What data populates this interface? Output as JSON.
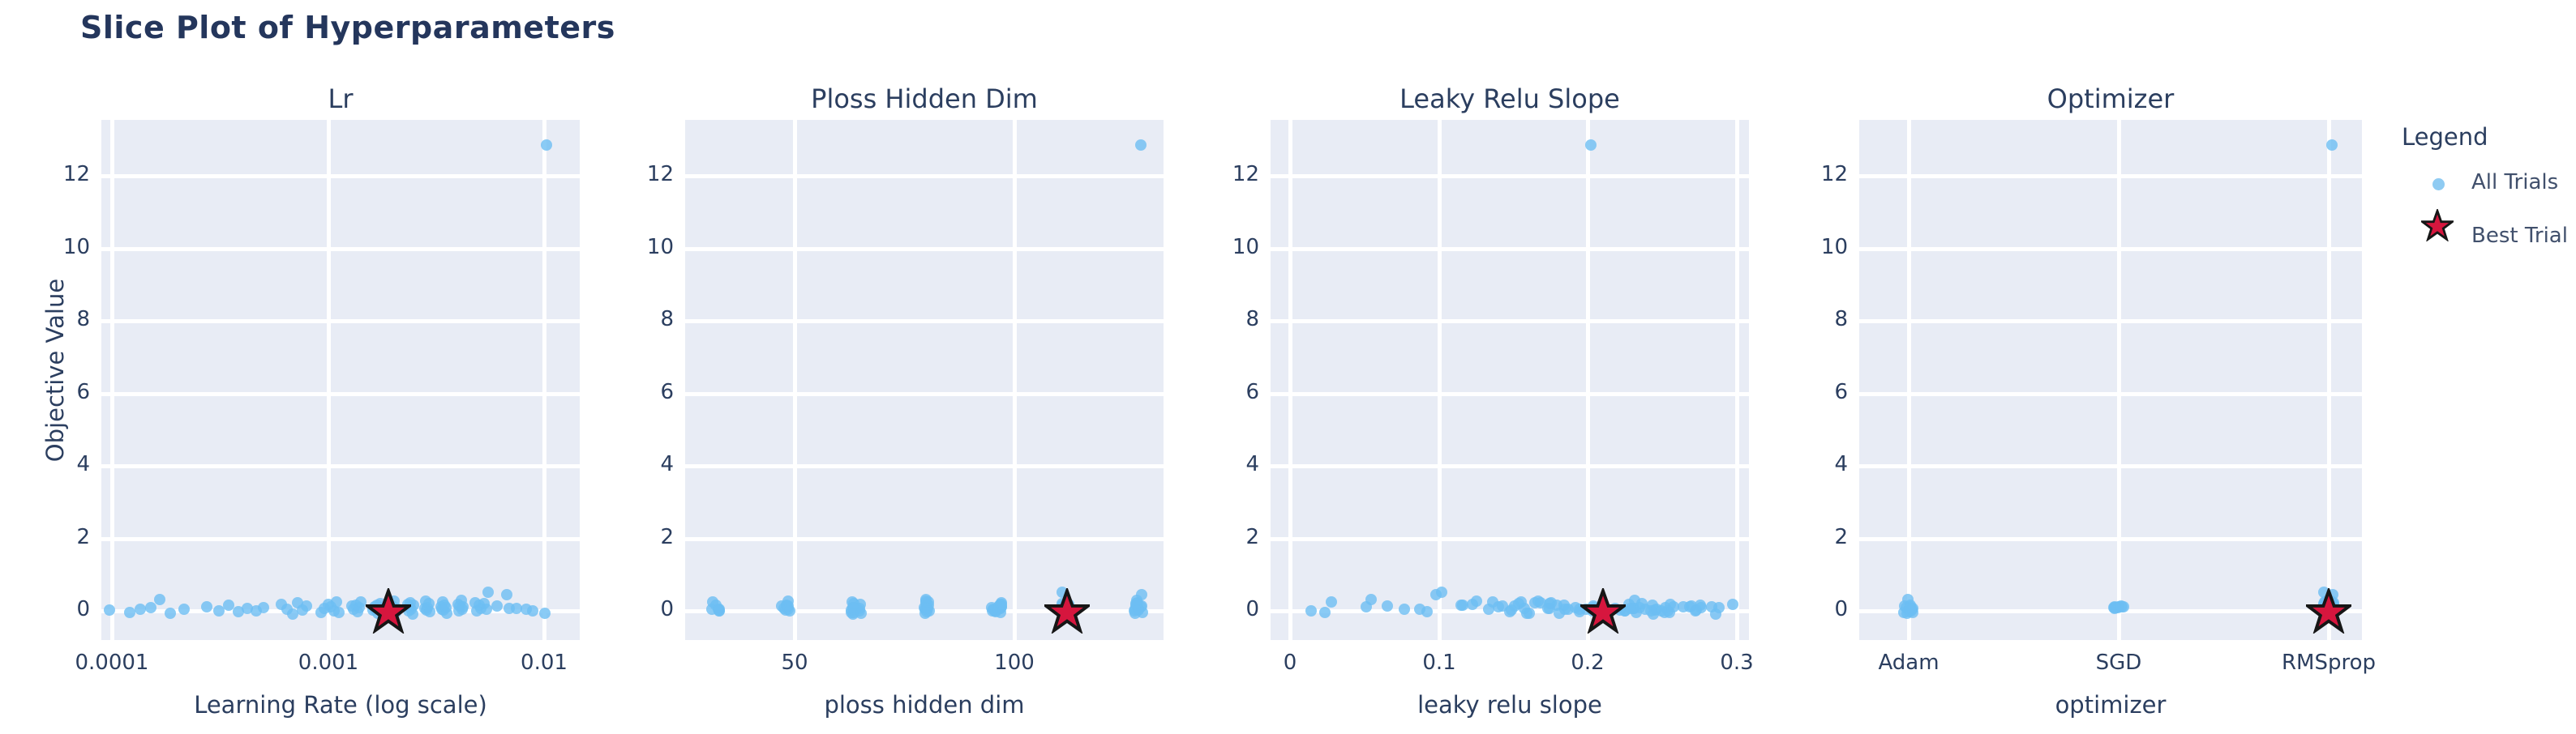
{
  "page": {
    "title": "Slice Plot of Hyperparameters"
  },
  "colors": {
    "background": "#ffffff",
    "plot_background": "#e8ecf5",
    "gridline": "#ffffff",
    "text": "#2b3e5f",
    "title_text": "#24365c",
    "trial_dot": "rgba(109,190,242,0.8)",
    "best_star_fill": "#d6163e",
    "best_star_stroke": "#161616"
  },
  "chart_data": {
    "type": "scatter",
    "title": "Slice Plot of Hyperparameters",
    "ylabel": "Objective Value",
    "ylim": [
      -0.8,
      13.55
    ],
    "yticks": [
      0,
      2,
      4,
      6,
      8,
      10,
      12
    ],
    "grid": true,
    "legend": {
      "title": "Legend",
      "position": "right",
      "items": [
        {
          "label": "All Trials",
          "marker": "dot",
          "color": "#8fcbf2"
        },
        {
          "label": "Best Trial",
          "marker": "star",
          "color": "#d6163e"
        }
      ]
    },
    "subplots": [
      {
        "title": "Lr",
        "xlabel": "Learning Rate (log scale)",
        "param": "lr",
        "xscale": "log",
        "xlim": [
          8.9e-05,
          0.0146
        ],
        "xticks": [
          0.0001,
          0.001,
          0.01
        ],
        "xtick_labels": [
          "0.0001",
          "0.001",
          "0.01"
        ]
      },
      {
        "title": "Ploss Hidden Dim",
        "xlabel": "ploss hidden dim",
        "param": "hidden",
        "xscale": "linear",
        "xlim": [
          25,
          134
        ],
        "xticks": [
          50,
          100
        ],
        "xtick_labels": [
          "50",
          "100"
        ]
      },
      {
        "title": "Leaky Relu Slope",
        "xlabel": "leaky relu slope",
        "param": "slope",
        "xscale": "linear",
        "xlim": [
          -0.013,
          0.308
        ],
        "xticks": [
          0,
          0.1,
          0.2,
          0.3
        ],
        "xtick_labels": [
          "0",
          "0.1",
          "0.2",
          "0.3"
        ]
      },
      {
        "title": "Optimizer",
        "xlabel": "optimizer",
        "param": "optimizer",
        "xscale": "categorical",
        "categories": [
          "Adam",
          "SGD",
          "RMSprop"
        ],
        "cat_pos": [
          0.098,
          0.516,
          0.934
        ]
      }
    ],
    "hidden_dim_choices": [
      32,
      48,
      64,
      80,
      96,
      112,
      128
    ],
    "best_trial": {
      "lr": 0.0019,
      "hidden": 112,
      "slope": 0.21,
      "optimizer": "RMSprop",
      "objective": 0.0
    },
    "trials": [
      [
        0.000102,
        64,
        0.152,
        "RMSprop",
        0.02
      ],
      [
        0.000115,
        96,
        0.021,
        "Adam",
        -0.04
      ],
      [
        0.000131,
        48,
        0.185,
        "RMSprop",
        0.06
      ],
      [
        0.00015,
        112,
        0.203,
        "RMSprop",
        0.1
      ],
      [
        0.000168,
        80,
        0.055,
        "Adam",
        0.31
      ],
      [
        0.00019,
        128,
        0.162,
        "RMSprop",
        -0.06
      ],
      [
        0.000225,
        32,
        0.241,
        "RMSprop",
        0.04
      ],
      [
        0.00026,
        96,
        0.048,
        "SGD",
        0.12
      ],
      [
        0.0003,
        64,
        0.27,
        "RMSprop",
        0.0
      ],
      [
        0.00034,
        112,
        0.178,
        "RMSprop",
        0.15
      ],
      [
        0.000385,
        80,
        0.092,
        "Adam",
        -0.02
      ],
      [
        0.00043,
        48,
        0.232,
        "RMSprop",
        0.07
      ],
      [
        0.00048,
        128,
        0.205,
        "RMSprop",
        0.01
      ],
      [
        0.00053,
        96,
        0.255,
        "SGD",
        0.09
      ],
      [
        0.00058,
        64,
        0.12,
        "RMSprop",
        0.18
      ],
      [
        0.00063,
        32,
        0.075,
        "Adam",
        0.05
      ],
      [
        0.00068,
        112,
        0.285,
        "RMSprop",
        -0.08
      ],
      [
        0.00073,
        80,
        0.165,
        "RMSprop",
        0.22
      ],
      [
        0.00078,
        96,
        0.215,
        "RMSprop",
        0.03
      ],
      [
        0.00083,
        48,
        0.068,
        "Adam",
        0.14
      ],
      [
        0.00088,
        128,
        0.248,
        "RMSprop",
        -0.03
      ],
      [
        0.00093,
        64,
        0.172,
        "RMSprop",
        0.08
      ],
      [
        0.00098,
        112,
        0.296,
        "RMSprop",
        0.19
      ],
      [
        0.00103,
        80,
        0.14,
        "SGD",
        0.11
      ],
      [
        0.00108,
        96,
        0.226,
        "RMSprop",
        0.0
      ],
      [
        0.00113,
        32,
        0.03,
        "RMSprop",
        0.26
      ],
      [
        0.00118,
        64,
        0.258,
        "Adam",
        -0.05
      ],
      [
        0.00123,
        128,
        0.148,
        "RMSprop",
        0.13
      ],
      [
        0.00128,
        112,
        0.21,
        "RMSprop",
        0.05
      ],
      [
        0.00133,
        48,
        0.275,
        "RMSprop",
        0.17
      ],
      [
        0.00138,
        96,
        0.195,
        "RMSprop",
        -0.01
      ],
      [
        0.00143,
        80,
        0.236,
        "Adam",
        0.09
      ],
      [
        0.00148,
        64,
        0.158,
        "RMSprop",
        0.24
      ],
      [
        0.00153,
        112,
        0.218,
        "RMSprop",
        0.02
      ],
      [
        0.00158,
        128,
        0.262,
        "SGD",
        0.12
      ],
      [
        0.00163,
        96,
        0.132,
        "RMSprop",
        0.06
      ],
      [
        0.00168,
        32,
        0.243,
        "RMSprop",
        0.16
      ],
      [
        0.00173,
        80,
        0.182,
        "Adam",
        -0.07
      ],
      [
        0.00178,
        64,
        0.29,
        "RMSprop",
        0.1
      ],
      [
        0.00183,
        112,
        0.157,
        "RMSprop",
        0.21
      ],
      [
        0.00188,
        48,
        0.222,
        "RMSprop",
        0.0
      ],
      [
        0.00193,
        96,
        0.268,
        "RMSprop",
        0.14
      ],
      [
        0.00198,
        128,
        0.198,
        "Adam",
        0.04
      ],
      [
        0.00204,
        80,
        0.126,
        "RMSprop",
        0.28
      ],
      [
        0.0021,
        64,
        0.234,
        "RMSprop",
        -0.04
      ],
      [
        0.00216,
        112,
        0.176,
        "SGD",
        0.08
      ],
      [
        0.00222,
        96,
        0.252,
        "RMSprop",
        0.18
      ],
      [
        0.00228,
        32,
        0.012,
        "RMSprop",
        0.01
      ],
      [
        0.00234,
        48,
        0.282,
        "Adam",
        0.11
      ],
      [
        0.0024,
        128,
        0.168,
        "RMSprop",
        0.23
      ],
      [
        0.00247,
        80,
        0.206,
        "RMSprop",
        0.05
      ],
      [
        0.00254,
        64,
        0.246,
        "RMSprop",
        -0.09
      ],
      [
        0.00261,
        112,
        0.118,
        "RMSprop",
        0.15
      ],
      [
        0.00268,
        96,
        0.228,
        "Adam",
        0.07
      ],
      [
        0.00275,
        48,
        0.165,
        "RMSprop",
        0.27
      ],
      [
        0.00283,
        128,
        0.272,
        "RMSprop",
        0.02
      ],
      [
        0.00291,
        80,
        0.192,
        "SGD",
        0.1
      ],
      [
        0.00299,
        64,
        0.238,
        "RMSprop",
        0.2
      ],
      [
        0.00307,
        112,
        0.15,
        "RMSprop",
        -0.02
      ],
      [
        0.00316,
        96,
        0.265,
        "RMSprop",
        0.12
      ],
      [
        0.00325,
        32,
        0.085,
        "Adam",
        0.06
      ],
      [
        0.00334,
        80,
        0.135,
        "RMSprop",
        0.25
      ],
      [
        0.00343,
        48,
        0.245,
        "RMSprop",
        0.03
      ],
      [
        0.00352,
        128,
        0.185,
        "RMSprop",
        0.16
      ],
      [
        0.00362,
        64,
        0.278,
        "SGD",
        0.09
      ],
      [
        0.00372,
        112,
        0.162,
        "RMSprop",
        -0.06
      ],
      [
        0.00382,
        96,
        0.225,
        "RMSprop",
        0.19
      ],
      [
        0.00393,
        80,
        0.252,
        "Adam",
        0.01
      ],
      [
        0.00404,
        48,
        0.142,
        "RMSprop",
        0.13
      ],
      [
        0.00416,
        128,
        0.232,
        "RMSprop",
        0.29
      ],
      [
        0.00428,
        64,
        0.196,
        "RMSprop",
        0.04
      ],
      [
        0.0044,
        112,
        0.26,
        "SGD",
        0.11
      ],
      [
        0.00455,
        96,
        0.172,
        "RMSprop",
        0.22
      ],
      [
        0.0047,
        32,
        0.24,
        "RMSprop",
        0.0
      ],
      [
        0.0049,
        80,
        0.115,
        "Adam",
        0.17
      ],
      [
        0.0051,
        64,
        0.218,
        "RMSprop",
        0.07
      ],
      [
        0.00535,
        128,
        0.175,
        "RMSprop",
        0.2
      ],
      [
        0.0056,
        96,
        0.248,
        "RMSprop",
        0.05
      ],
      [
        0.0058,
        112,
        0.105,
        "RMSprop",
        0.52
      ],
      [
        0.0064,
        128,
        0.095,
        "RMSprop",
        0.45
      ],
      [
        0.0059,
        48,
        0.202,
        "SGD",
        0.14
      ],
      [
        0.0068,
        80,
        0.228,
        "Adam",
        0.08
      ],
      [
        0.0075,
        112,
        0.158,
        "RMSprop",
        0.08
      ],
      [
        0.0085,
        128,
        0.186,
        "RMSprop",
        0.04
      ],
      [
        0.0092,
        96,
        0.252,
        "RMSprop",
        0.0
      ],
      [
        0.0096,
        64,
        0.205,
        "RMSprop",
        -0.06
      ],
      [
        0.0099,
        128,
        0.2,
        "RMSprop",
        12.85
      ]
    ]
  }
}
